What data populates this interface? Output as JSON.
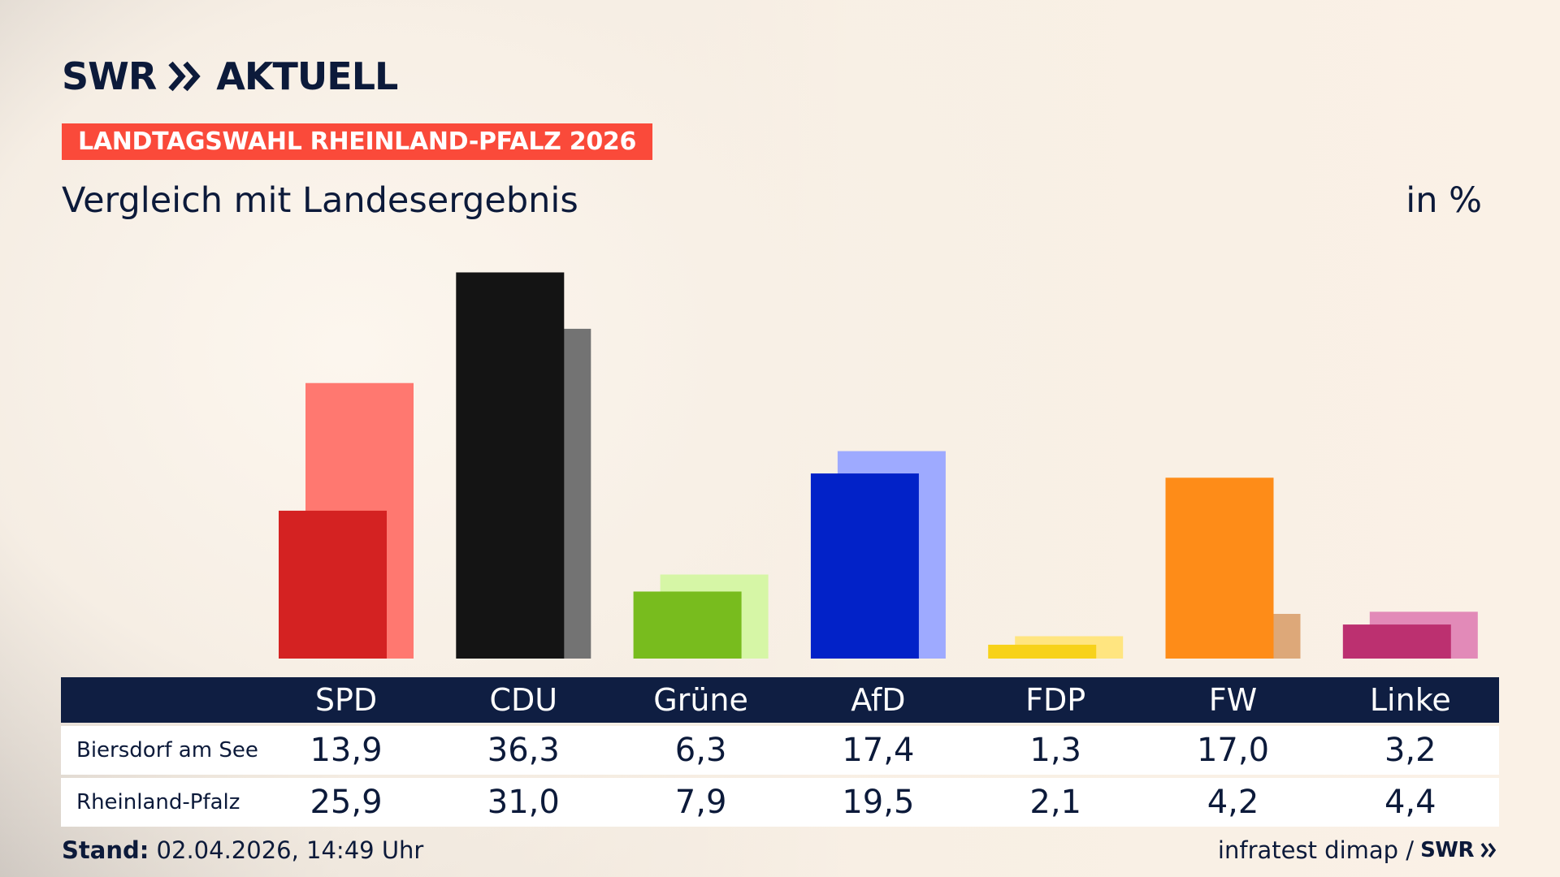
{
  "brand": {
    "logo_text": "SWR",
    "logo_section": "AKTUELL",
    "small_logo": "SWR"
  },
  "kicker": "LANDTAGSWAHL RHEINLAND-PFALZ 2026",
  "subtitle": "Vergleich mit Landesergebnis",
  "unit": "in %",
  "footer": {
    "stand_label": "Stand:",
    "stand_value": "02.04.2026, 14:49 Uhr",
    "source": "infratest dimap /"
  },
  "chart_data": {
    "type": "bar",
    "categories": [
      "SPD",
      "CDU",
      "Grüne",
      "AfD",
      "FDP",
      "FW",
      "Linke"
    ],
    "series": [
      {
        "name": "Biersdorf am See",
        "values": [
          13.9,
          36.3,
          6.3,
          17.4,
          1.3,
          17.0,
          3.2
        ],
        "display": [
          "13,9",
          "36,3",
          "6,3",
          "17,4",
          "1,3",
          "17,0",
          "3,2"
        ]
      },
      {
        "name": "Rheinland-Pfalz",
        "values": [
          25.9,
          31.0,
          7.9,
          19.5,
          2.1,
          4.2,
          4.4
        ],
        "display": [
          "25,9",
          "31,0",
          "7,9",
          "19,5",
          "2,1",
          "4,2",
          "4,4"
        ]
      }
    ],
    "colors": {
      "local": [
        "#d42222",
        "#141414",
        "#78bc1e",
        "#0222c8",
        "#f7d21a",
        "#fe8c18",
        "#bc3070"
      ],
      "state": [
        "#ff7870",
        "#737373",
        "#d6f6a6",
        "#9eaaff",
        "#ffe580",
        "#dda879",
        "#e28ab8"
      ]
    }
  }
}
